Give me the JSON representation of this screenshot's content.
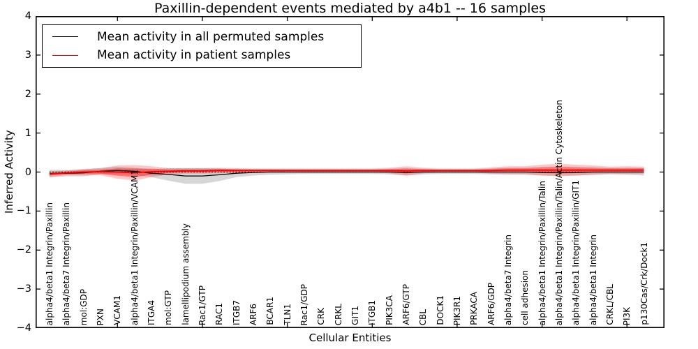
{
  "title": "Paxillin-dependent events mediated by a4b1 -- 16 samples",
  "axes": {
    "ylabel": "Inferred Activity",
    "xlabel": "Cellular Entities",
    "yticks": [
      "4",
      "3",
      "2",
      "1",
      "0",
      "−1",
      "−2",
      "−3",
      "−4"
    ]
  },
  "legend": {
    "items": [
      {
        "label": "Mean activity in all permuted samples",
        "color": "#000000"
      },
      {
        "label": "Mean activity in patient samples",
        "color": "#ff0000"
      }
    ]
  },
  "colors": {
    "permuted_line": "#000000",
    "permuted_band": "rgba(0,0,0,0.16)",
    "patient_line": "#ff0000",
    "patient_band_outer": "rgba(255,0,0,0.22)",
    "patient_band_inner": "rgba(255,0,0,0.38)",
    "zero_line": "#000000",
    "background": "#ffffff"
  },
  "chart_data": {
    "type": "line",
    "title": "Paxillin-dependent events mediated by a4b1 -- 16 samples",
    "xlabel": "Cellular Entities",
    "ylabel": "Inferred Activity",
    "ylim": [
      -4,
      4
    ],
    "grid": false,
    "legend_position": "upper left",
    "zero_reference_line": 0,
    "xtick_indices": [
      4,
      9,
      14,
      19,
      24,
      29,
      34
    ],
    "categories": [
      "alpha4/beta1 Integrin/Paxillin",
      "alpha4/beta7 Integrin/Paxillin",
      "mol:GDP",
      "PXN",
      "VCAM1",
      "alpha4/beta1 Integrin/Paxillin/VCAM1",
      "ITGA4",
      "mol:GTP",
      "lamellipodium assembly",
      "Rac1/GTP",
      "RAC1",
      "ITGB7",
      "ARF6",
      "BCAR1",
      "TLN1",
      "Rac1/GDP",
      "CRK",
      "CRKL",
      "GIT1",
      "ITGB1",
      "PIK3CA",
      "ARF6/GTP",
      "CBL",
      "DOCK1",
      "PIK3R1",
      "PRKACA",
      "ARF6/GDP",
      "alpha4/beta7 Integrin",
      "cell adhesion",
      "alpha4/beta1 Integrin/Paxillin/Talin",
      "alpha4/beta1 Integrin/Paxillin/Talin/Actin Cytoskeleton",
      "alpha4/beta1 Integrin/Paxillin/GIT1",
      "alpha4/beta1 Integrin",
      "CRKL/CBL",
      "PI3K",
      "p130Cas/Crk/Dock1"
    ],
    "series": [
      {
        "name": "Mean activity in all permuted samples",
        "color": "#000000",
        "values": [
          -0.04,
          -0.03,
          -0.02,
          0.02,
          0.04,
          0.02,
          -0.03,
          -0.06,
          -0.1,
          -0.1,
          -0.07,
          -0.03,
          -0.01,
          0,
          0,
          0,
          0,
          0,
          0,
          0,
          0,
          -0.01,
          0,
          0,
          0,
          0,
          0,
          0,
          0,
          -0.01,
          -0.01,
          -0.01,
          0,
          0,
          0,
          0
        ],
        "band_halfwidth": [
          0.1,
          0.08,
          0.09,
          0.08,
          0.1,
          0.09,
          0.1,
          0.16,
          0.2,
          0.2,
          0.16,
          0.1,
          0.08,
          0.07,
          0.06,
          0.05,
          0.05,
          0.05,
          0.05,
          0.05,
          0.06,
          0.08,
          0.06,
          0.05,
          0.05,
          0.05,
          0.06,
          0.07,
          0.07,
          0.08,
          0.08,
          0.08,
          0.07,
          0.06,
          0.07,
          0.09
        ]
      },
      {
        "name": "Mean activity in patient samples",
        "color": "#ff0000",
        "values": [
          -0.05,
          -0.02,
          0.0,
          0.01,
          0.0,
          -0.02,
          0.01,
          0.02,
          0.03,
          0.03,
          0.04,
          0.04,
          0.04,
          0.04,
          0.04,
          0.04,
          0.04,
          0.04,
          0.04,
          0.04,
          0.04,
          0.03,
          0.04,
          0.04,
          0.04,
          0.04,
          0.04,
          0.05,
          0.05,
          0.05,
          0.05,
          0.05,
          0.05,
          0.05,
          0.05,
          0.05
        ],
        "band_halfwidth": [
          0.07,
          0.06,
          0.08,
          0.09,
          0.17,
          0.2,
          0.14,
          0.08,
          0.07,
          0.07,
          0.07,
          0.06,
          0.05,
          0.05,
          0.05,
          0.05,
          0.05,
          0.05,
          0.05,
          0.05,
          0.07,
          0.12,
          0.07,
          0.05,
          0.05,
          0.05,
          0.08,
          0.1,
          0.1,
          0.14,
          0.16,
          0.14,
          0.12,
          0.09,
          0.1,
          0.09
        ]
      }
    ]
  }
}
